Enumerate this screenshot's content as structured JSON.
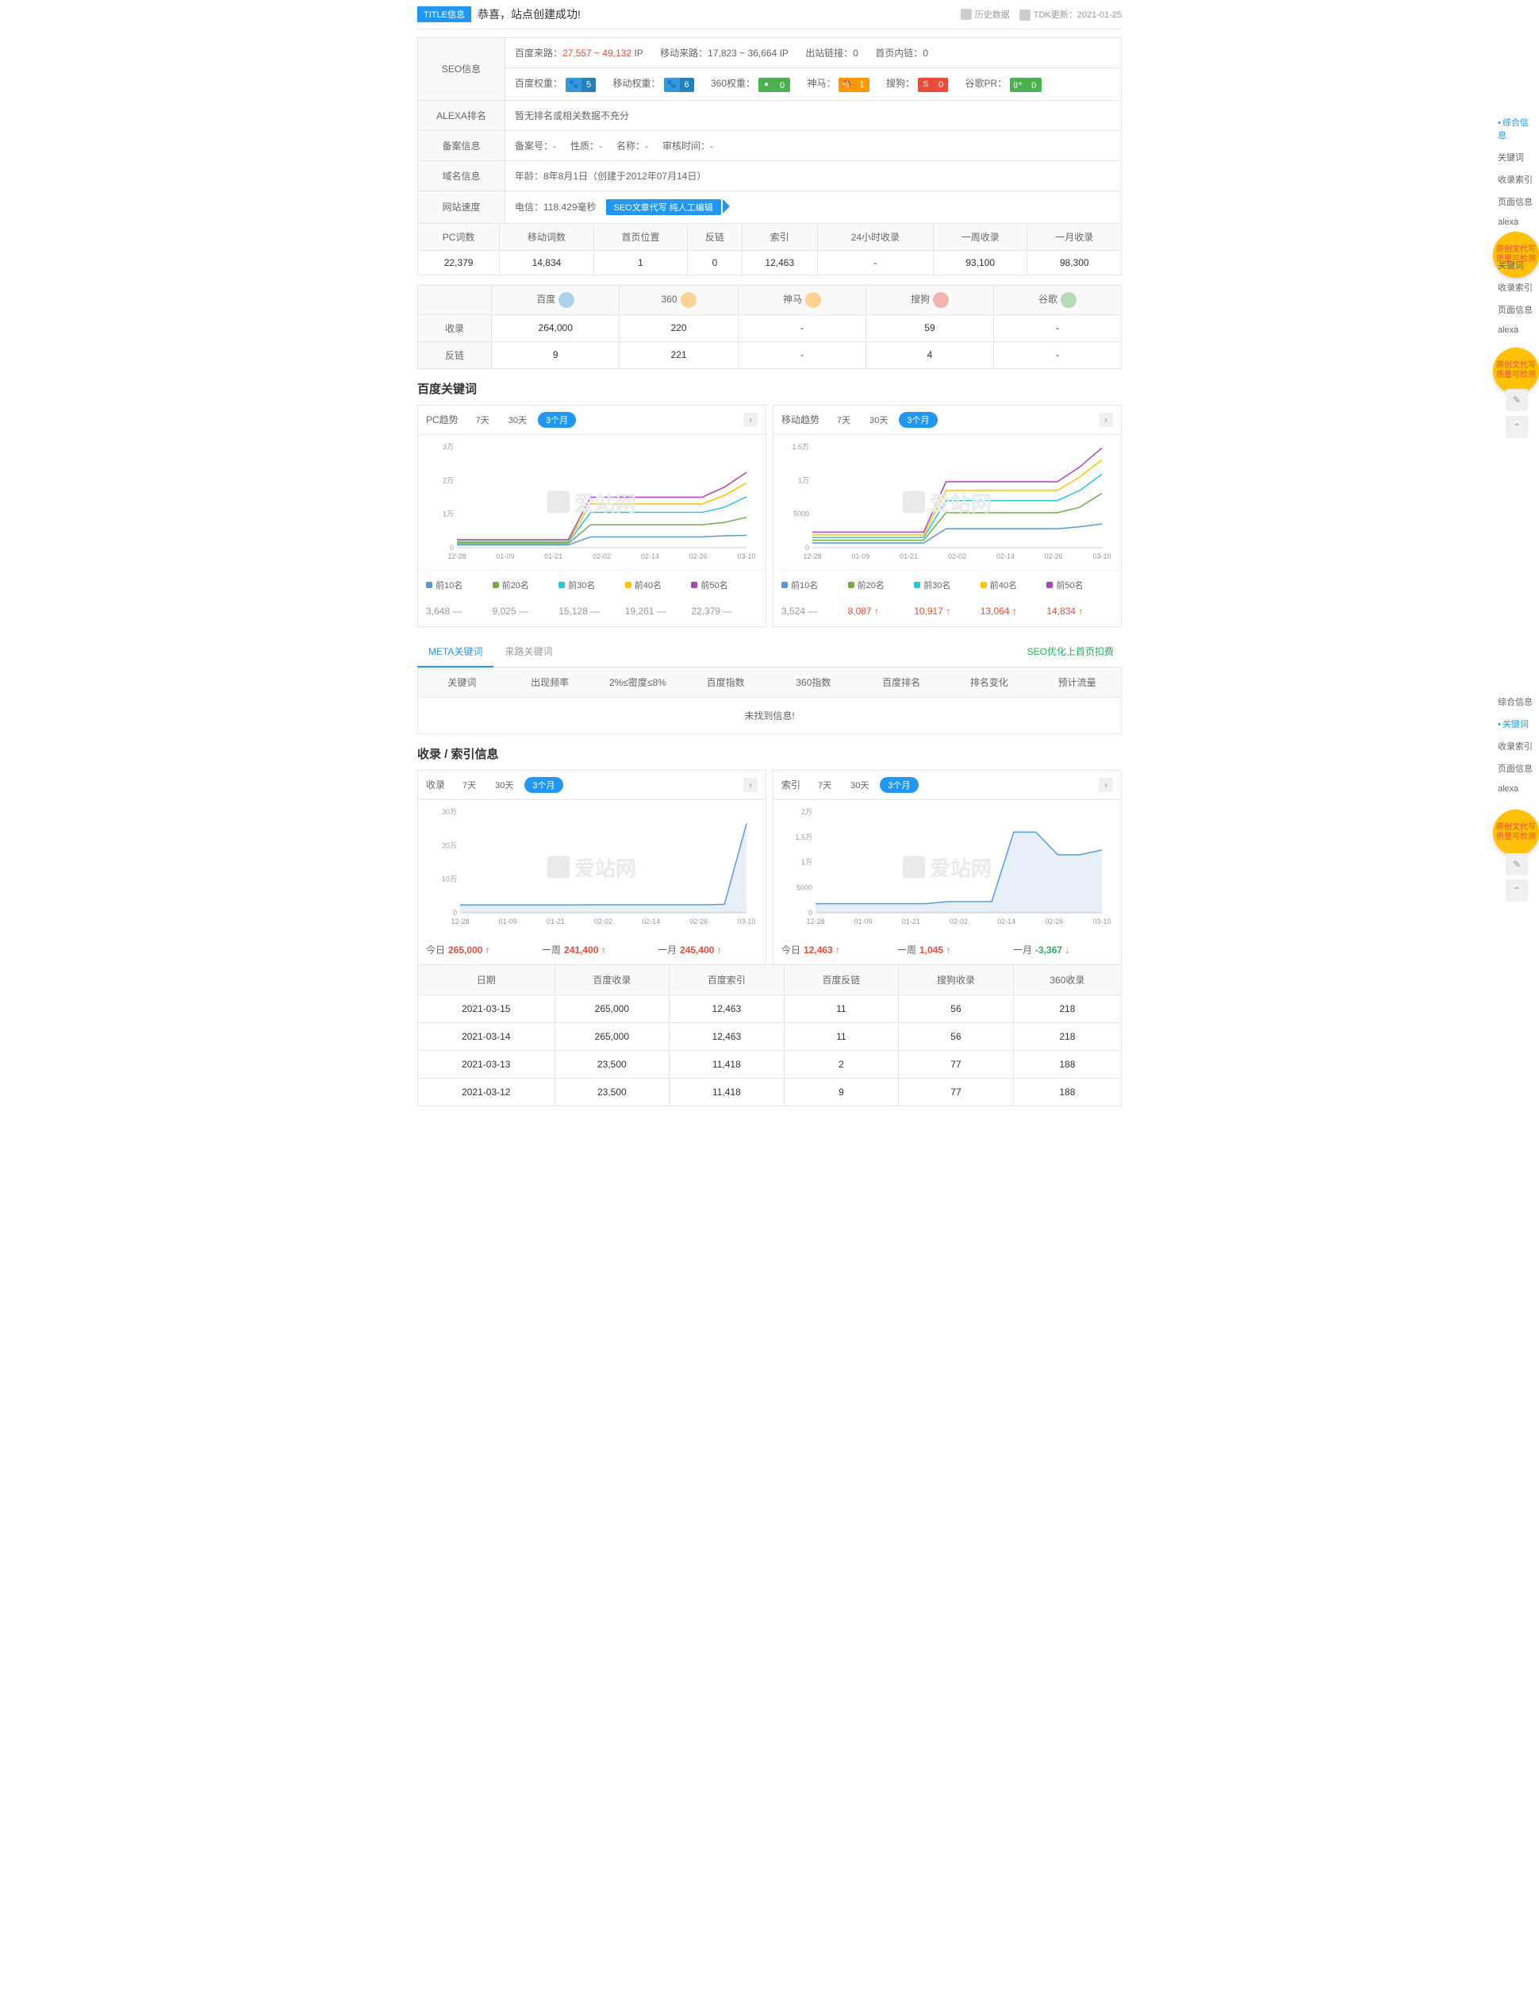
{
  "title_badge": "TITLE信息",
  "title_text": "恭喜，站点创建成功!",
  "history_label": "历史数据",
  "tdk_label": "TDK更新：2021-01-25",
  "info_rows": {
    "seo": {
      "label": "SEO信息",
      "baidu_from": "百度来路：",
      "baidu_from_val": "27,557 ~ 49,132",
      "baidu_from_unit": "IP",
      "mobile_from": "移动来路：",
      "mobile_from_val": "17,823 ~ 36,664",
      "mobile_from_unit": "IP",
      "out_link": "出站链接：",
      "out_link_val": "0",
      "home_link": "首页内链：",
      "home_link_val": "0"
    },
    "weights": {
      "baidu": "百度权重：",
      "baidu_val": "5",
      "mobile": "移动权重：",
      "mobile_val": "6",
      "s360": "360权重：",
      "s360_val": "0",
      "shenma": "神马：",
      "shenma_val": "1",
      "sogou": "搜狗：",
      "sogou_val": "0",
      "google": "谷歌PR：",
      "google_val": "0"
    },
    "alexa": {
      "label": "ALEXA排名",
      "val": "暂无排名或相关数据不充分"
    },
    "beian": {
      "label": "备案信息",
      "no": "备案号：-",
      "nature": "性质：-",
      "name": "名称：-",
      "time": "审核时间：-"
    },
    "domain": {
      "label": "域名信息",
      "age": "年龄：",
      "age_val": "8年8月1日（创建于2012年07月14日）"
    },
    "speed": {
      "label": "网站速度",
      "dianxin": "电信：118.429毫秒",
      "seo_badge1": "SEO文章代写",
      "seo_badge2": "纯人工编辑"
    }
  },
  "stats_header": [
    "PC词数",
    "移动词数",
    "首页位置",
    "反链",
    "索引",
    "24小时收录",
    "一周收录",
    "一月收录"
  ],
  "stats_values": [
    "22,379",
    "14,834",
    "1",
    "0",
    "12,463",
    "-",
    "93,100",
    "98,300"
  ],
  "se_header": [
    "",
    "百度",
    "360",
    "神马",
    "搜狗",
    "谷歌"
  ],
  "se_icons": [
    "",
    "#3498db",
    "#ff9800",
    "#ff9800",
    "#e74c3c",
    "#4caf50"
  ],
  "se_row1": [
    "收录",
    "264,000",
    "220",
    "-",
    "59",
    "-"
  ],
  "se_row2": [
    "反链",
    "9",
    "221",
    "-",
    "4",
    "-"
  ],
  "section_kw": "百度关键词",
  "chart_labels": {
    "pc": "PC趋势",
    "mobile": "移动趋势",
    "t7": "7天",
    "t30": "30天",
    "t90": "3个月",
    "watermark": "爱站网"
  },
  "chart_pc": {
    "ylim": [
      0,
      30000
    ],
    "yticks": [
      "3万",
      "2万",
      "1万",
      "0"
    ],
    "xticks": [
      "12-28",
      "01-09",
      "01-21",
      "02-02",
      "02-14",
      "02-26",
      "03-10"
    ],
    "series": [
      {
        "name": "前10名",
        "color": "#5b9bd5",
        "data": [
          800,
          800,
          800,
          800,
          800,
          800,
          3200,
          3200,
          3200,
          3200,
          3200,
          3200,
          3500,
          3648
        ]
      },
      {
        "name": "前20名",
        "color": "#70ad47",
        "data": [
          1200,
          1200,
          1200,
          1200,
          1200,
          1200,
          6800,
          6800,
          6800,
          6800,
          6800,
          6800,
          7500,
          9025
        ]
      },
      {
        "name": "前30名",
        "color": "#26c6da",
        "data": [
          1600,
          1600,
          1600,
          1600,
          1600,
          1600,
          10500,
          10500,
          10500,
          10500,
          10500,
          10500,
          12000,
          15128
        ]
      },
      {
        "name": "前40名",
        "color": "#ffc107",
        "data": [
          2000,
          2000,
          2000,
          2000,
          2000,
          2000,
          13000,
          13000,
          13000,
          13000,
          13000,
          13000,
          15500,
          19261
        ]
      },
      {
        "name": "前50名",
        "color": "#ab47bc",
        "data": [
          2400,
          2400,
          2400,
          2400,
          2400,
          2400,
          15000,
          15000,
          15000,
          15000,
          15000,
          15000,
          18000,
          22379
        ]
      }
    ],
    "legend_vals": [
      "3,648",
      "9,025",
      "15,128",
      "19,261",
      "22,379"
    ],
    "legend_trends": [
      "eq",
      "eq",
      "eq",
      "eq",
      "eq"
    ]
  },
  "chart_mobile": {
    "ylim": [
      0,
      15000
    ],
    "yticks": [
      "1.5万",
      "1万",
      "5000",
      "0"
    ],
    "xticks": [
      "12-28",
      "01-09",
      "01-21",
      "02-02",
      "02-14",
      "02-26",
      "03-10"
    ],
    "series": [
      {
        "name": "前10名",
        "color": "#5b9bd5",
        "data": [
          700,
          700,
          700,
          700,
          700,
          700,
          2800,
          2800,
          2800,
          2800,
          2800,
          2800,
          3100,
          3524
        ]
      },
      {
        "name": "前20名",
        "color": "#70ad47",
        "data": [
          1100,
          1100,
          1100,
          1100,
          1100,
          1100,
          5200,
          5200,
          5200,
          5200,
          5200,
          5200,
          6000,
          8087
        ]
      },
      {
        "name": "前30名",
        "color": "#26c6da",
        "data": [
          1500,
          1500,
          1500,
          1500,
          1500,
          1500,
          7000,
          7000,
          7000,
          7000,
          7000,
          7000,
          8500,
          10917
        ]
      },
      {
        "name": "前40名",
        "color": "#ffc107",
        "data": [
          1900,
          1900,
          1900,
          1900,
          1900,
          1900,
          8500,
          8500,
          8500,
          8500,
          8500,
          8500,
          10500,
          13064
        ]
      },
      {
        "name": "前50名",
        "color": "#ab47bc",
        "data": [
          2300,
          2300,
          2300,
          2300,
          2300,
          2300,
          9800,
          9800,
          9800,
          9800,
          9800,
          9800,
          12000,
          14834
        ]
      }
    ],
    "legend_vals": [
      "3,524",
      "8,087",
      "10,917",
      "13,064",
      "14,834"
    ],
    "legend_trends": [
      "eq",
      "up",
      "up",
      "up",
      "up"
    ]
  },
  "meta_tabs": {
    "t1": "META关键词",
    "t2": "来路关键词",
    "right": "SEO优化上首页扣费"
  },
  "meta_header": [
    "关键词",
    "出现频率",
    "2%≤密度≤8%",
    "百度指数",
    "360指数",
    "百度排名",
    "排名变化",
    "预计流量"
  ],
  "meta_empty": "未找到信息!",
  "section_index": "收录 / 索引信息",
  "chart_shoulu": {
    "label": "收录",
    "ylim": [
      0,
      300000
    ],
    "yticks": [
      "30万",
      "20万",
      "10万",
      "0"
    ],
    "xticks": [
      "12-28",
      "01-09",
      "01-21",
      "02-02",
      "02-14",
      "02-26",
      "03-10"
    ],
    "color": "#5b9bd5",
    "data": [
      23000,
      23000,
      23000,
      23000,
      23000,
      23000,
      23500,
      23500,
      23500,
      23500,
      23500,
      23500,
      25000,
      265000
    ]
  },
  "chart_suoyin": {
    "label": "索引",
    "ylim": [
      0,
      20000
    ],
    "yticks": [
      "2万",
      "1.5万",
      "1万",
      "5000",
      "0"
    ],
    "xticks": [
      "12-28",
      "01-09",
      "01-21",
      "02-02",
      "02-14",
      "02-26",
      "03-10"
    ],
    "color": "#5b9bd5",
    "data": [
      1800,
      1800,
      1800,
      1800,
      1800,
      1800,
      2200,
      2200,
      2200,
      16000,
      16000,
      11500,
      11500,
      12463
    ]
  },
  "summary_shoulu": [
    {
      "label": "今日",
      "val": "265,000",
      "trend": "up"
    },
    {
      "label": "一周",
      "val": "241,400",
      "trend": "up"
    },
    {
      "label": "一月",
      "val": "245,400",
      "trend": "up"
    }
  ],
  "summary_suoyin": [
    {
      "label": "今日",
      "val": "12,463",
      "trend": "up"
    },
    {
      "label": "一周",
      "val": "1,045",
      "trend": "up"
    },
    {
      "label": "一月",
      "val": "-3,367",
      "trend": "down"
    }
  ],
  "data_table_header": [
    "日期",
    "百度收录",
    "百度索引",
    "百度反链",
    "搜狗收录",
    "360收录"
  ],
  "data_table_rows": [
    [
      "2021-03-15",
      "265,000",
      "12,463",
      "11",
      "56",
      "218"
    ],
    [
      "2021-03-14",
      "265,000",
      "12,463",
      "11",
      "56",
      "218"
    ],
    [
      "2021-03-13",
      "23,500",
      "11,418",
      "2",
      "77",
      "188"
    ],
    [
      "2021-03-12",
      "23,500",
      "11,418",
      "9",
      "77",
      "188"
    ]
  ],
  "sidebar1": [
    "综合信息",
    "关键词",
    "收录索引",
    "页面信息",
    "alexa"
  ],
  "sidebar2": [
    "关键词",
    "收录索引",
    "页面信息",
    "alexa"
  ],
  "sidebar3": [
    "综合信息",
    "关键词",
    "收录索引",
    "页面信息",
    "alexa"
  ],
  "badge1": "原创文代写\n质量可检测",
  "badge2": "原创文代写\n质量可检测"
}
